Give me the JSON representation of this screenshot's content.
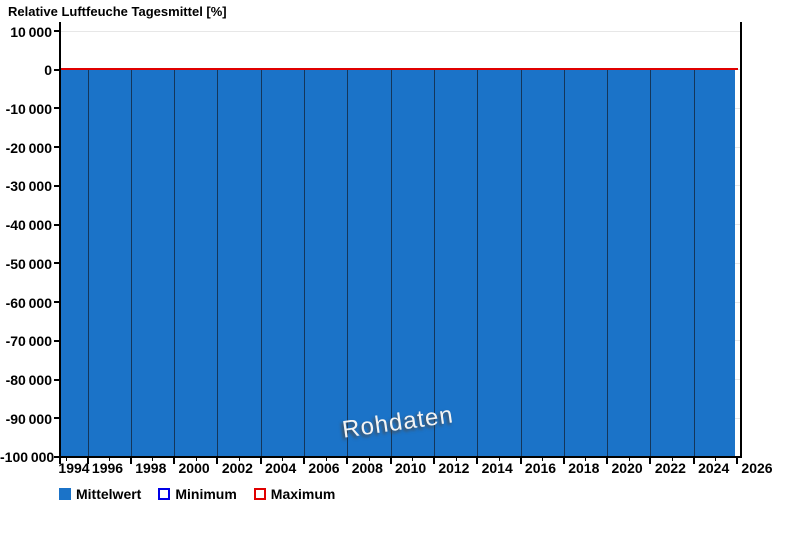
{
  "chart_data": {
    "type": "area",
    "title": "Relative Luftfeuche Tagesmittel [%]",
    "watermark": "Rohdaten",
    "x_axis": {
      "label_years": [
        1994,
        1996,
        1998,
        2000,
        2002,
        2004,
        2006,
        2008,
        2010,
        2012,
        2014,
        2016,
        2018,
        2020,
        2022,
        2024,
        2026
      ],
      "major_tick_step": 2,
      "minor_tick_step": 1,
      "range": [
        1994,
        2026
      ],
      "data_range": [
        1994,
        2025.9
      ]
    },
    "y_axis": {
      "tick_values": [
        10000,
        0,
        -10000,
        -20000,
        -30000,
        -40000,
        -50000,
        -60000,
        -70000,
        -80000,
        -90000,
        -100000
      ],
      "tick_labels": [
        "10 000",
        "0",
        "-10 000",
        "-20 000",
        "-30 000",
        "-40 000",
        "-50 000",
        "-60 000",
        "-70 000",
        "-80 000",
        "-90 000",
        "-100 000"
      ],
      "range": [
        -100000,
        12000
      ],
      "grid": true
    },
    "series": [
      {
        "name": "Mittelwert",
        "type": "area",
        "color": "#1b73c8",
        "top_value": 0,
        "bottom_value": -100000,
        "note": "solid filled band from 0 down to -100000 across entire data range"
      },
      {
        "name": "Minimum",
        "type": "line",
        "color": "#0000e6",
        "visible_values": "none"
      },
      {
        "name": "Maximum",
        "type": "line",
        "color": "#e00000",
        "constant_value": 0
      }
    ],
    "legend": {
      "position": "bottom-left",
      "items": [
        {
          "label": "Mittelwert",
          "swatch": "filled",
          "color": "#1b73c8"
        },
        {
          "label": "Minimum",
          "swatch": "outline",
          "color": "#0000e6"
        },
        {
          "label": "Maximum",
          "swatch": "outline",
          "color": "#e00000"
        }
      ]
    }
  },
  "colors": {
    "area_fill": "#1b73c8",
    "year_divider": "#14365a",
    "max_line": "#e00000",
    "gridline": "#e7e7e7",
    "axis": "#000000",
    "watermark_fill": "#f4f4f4",
    "watermark_shadow": "#4a4a4a"
  }
}
